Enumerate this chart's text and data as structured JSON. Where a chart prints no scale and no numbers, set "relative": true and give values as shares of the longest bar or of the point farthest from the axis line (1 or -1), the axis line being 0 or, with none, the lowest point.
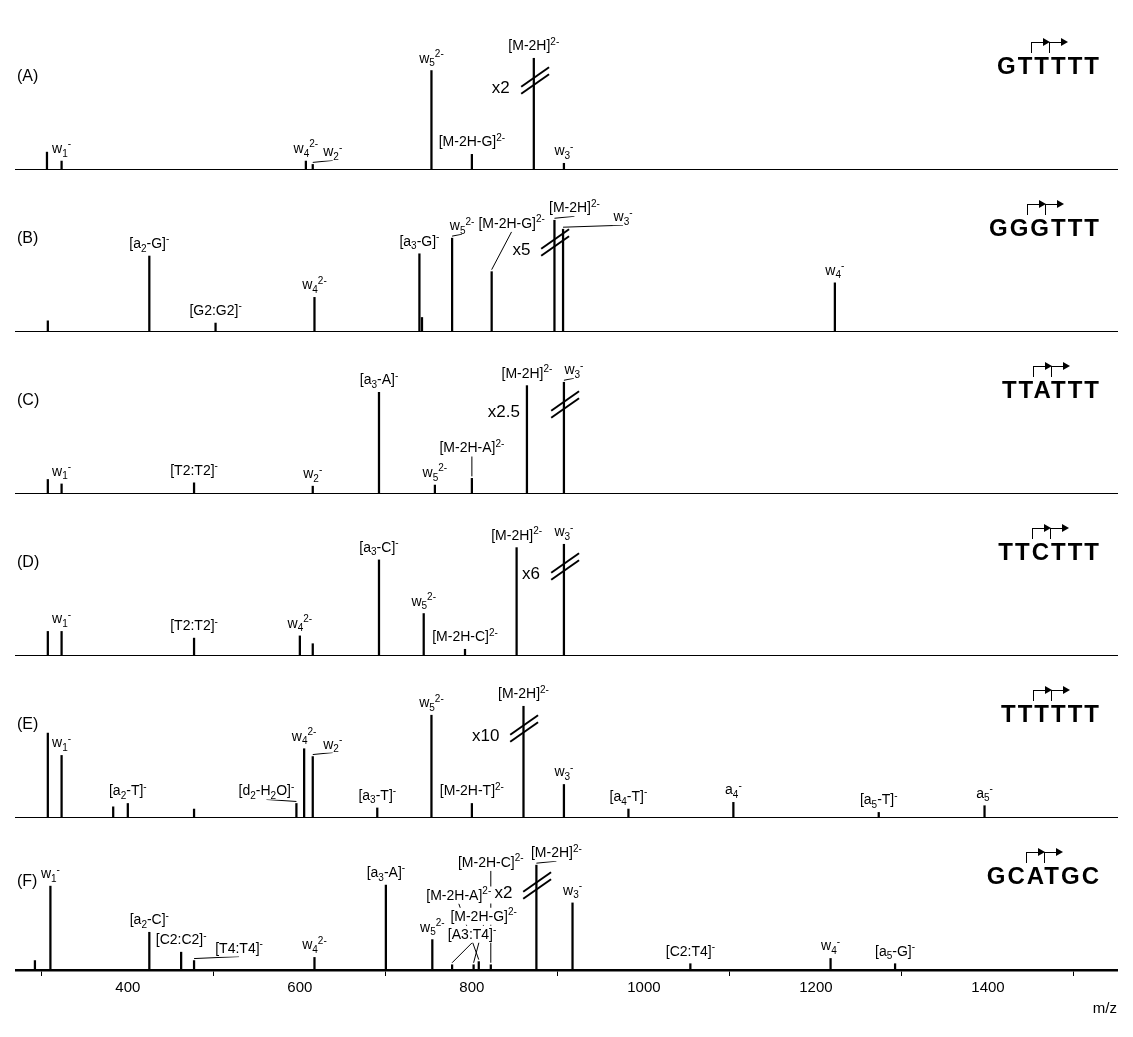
{
  "chart_data": [
    {
      "type": "bar",
      "relative": true,
      "color": "#000000",
      "xlim": [
        270,
        1550
      ],
      "tick_labels": false,
      "x": [
        306,
        323,
        607,
        615,
        753,
        800,
        872,
        907
      ],
      "values": [
        0.16,
        0.08,
        0.08,
        0.05,
        0.89,
        0.14,
        1,
        0.06
      ],
      "annotations": [
        "(A)",
        "GTTTTT",
        "x2",
        {
          "text": "w$_{1}$$^{-}$",
          "x": 323,
          "y": 0.08
        },
        {
          "text": "w$_{4}$$^{2-}$",
          "x": 607,
          "y": 0.08
        },
        {
          "text": "w$_{2}$$^{-}$",
          "x": 615,
          "y": 0.05
        },
        {
          "text": "w$_{5}$$^{2-}$",
          "x": 753,
          "y": 0.89
        },
        {
          "text": "[M-2H-G]$^{2-}$",
          "x": 800,
          "y": 0.14
        },
        {
          "text": "[M-2H]$^{2-}$",
          "x": 872,
          "y": 1
        },
        {
          "text": "w$_{3}$$^{-}$",
          "x": 907,
          "y": 0.06
        }
      ]
    },
    {
      "type": "bar",
      "relative": true,
      "color": "#000000",
      "xlim": [
        270,
        1550
      ],
      "tick_labels": false,
      "x": [
        307,
        425,
        502,
        617,
        739,
        742,
        777,
        823,
        896,
        906,
        1222
      ],
      "values": [
        0.1,
        0.68,
        0.08,
        0.31,
        0.7,
        0.13,
        0.84,
        0.54,
        1,
        0.92,
        0.44
      ],
      "annotations": [
        "(B)",
        "GGGTTT",
        "x5",
        {
          "text": "[a$_{2}$-G]$^{-}$",
          "x": 425,
          "y": 0.68
        },
        {
          "text": "[G2:G2]$^{-}$",
          "x": 502,
          "y": 0.08
        },
        {
          "text": "w$_{4}$$^{2-}$",
          "x": 617,
          "y": 0.31
        },
        {
          "text": "[a$_{3}$-G]$^{-}$",
          "x": 739,
          "y": 0.7
        },
        {
          "text": "w$_{5}$$^{2-}$",
          "x": 777,
          "y": 0.84
        },
        {
          "text": "[M-2H-G]$^{2-}$",
          "x": 823,
          "y": 0.54
        },
        {
          "text": "[M-2H]$^{2-}$",
          "x": 896,
          "y": 1
        },
        {
          "text": "w$_{3}$$^{-}$",
          "x": 906,
          "y": 0.92
        },
        {
          "text": "w$_{4}$$^{-}$",
          "x": 1222,
          "y": 0.44
        }
      ]
    },
    {
      "type": "bar",
      "relative": true,
      "color": "#000000",
      "xlim": [
        270,
        1550
      ],
      "tick_labels": false,
      "x": [
        307,
        323,
        477,
        615,
        692,
        757,
        800,
        864,
        907
      ],
      "values": [
        0.13,
        0.09,
        0.1,
        0.07,
        0.91,
        0.08,
        0.14,
        0.97,
        1
      ],
      "annotations": [
        "(C)",
        "TTATTT",
        "x2.5",
        {
          "text": "w$_{1}$$^{-}$",
          "x": 323,
          "y": 0.09
        },
        {
          "text": "[T2:T2]$^{-}$",
          "x": 477,
          "y": 0.1
        },
        {
          "text": "w$_{2}$$^{-}$",
          "x": 615,
          "y": 0.07
        },
        {
          "text": "[a$_{3}$-A]$^{-}$",
          "x": 692,
          "y": 0.91
        },
        {
          "text": "w$_{5}$$^{2-}$",
          "x": 757,
          "y": 0.08
        },
        {
          "text": "[M-2H-A]$^{2-}$",
          "x": 800,
          "y": 0.14
        },
        {
          "text": "[M-2H]$^{2-}$",
          "x": 864,
          "y": 0.97
        },
        {
          "text": "w$_{3}$$^{-}$",
          "x": 907,
          "y": 1
        }
      ]
    },
    {
      "type": "bar",
      "relative": true,
      "color": "#000000",
      "xlim": [
        270,
        1550
      ],
      "tick_labels": false,
      "x": [
        307,
        323,
        477,
        600,
        615,
        692,
        744,
        792,
        852,
        907
      ],
      "values": [
        0.22,
        0.22,
        0.16,
        0.18,
        0.11,
        0.86,
        0.38,
        0.06,
        0.97,
        1
      ],
      "annotations": [
        "(D)",
        "TTCTTT",
        "x6",
        {
          "text": "w$_{1}$$^{-}$",
          "x": 323,
          "y": 0.22
        },
        {
          "text": "[T2:T2]$^{-}$",
          "x": 477,
          "y": 0.16
        },
        {
          "text": "w$_{4}$$^{2-}$",
          "x": 600,
          "y": 0.18
        },
        {
          "text": "[a$_{3}$-C]$^{-}$",
          "x": 692,
          "y": 0.86
        },
        {
          "text": "w$_{5}$$^{2-}$",
          "x": 744,
          "y": 0.38
        },
        {
          "text": "[M-2H-C]$^{2-}$",
          "x": 792,
          "y": 0.06
        },
        {
          "text": "[M-2H]$^{2-}$",
          "x": 852,
          "y": 0.97
        },
        {
          "text": "w$_{3}$$^{-}$",
          "x": 907,
          "y": 1
        }
      ]
    },
    {
      "type": "bar",
      "relative": true,
      "color": "#000000",
      "xlim": [
        270,
        1550
      ],
      "tick_labels": false,
      "x": [
        307,
        323,
        383,
        400,
        477,
        596,
        605,
        615,
        690,
        753,
        800,
        860,
        907,
        982,
        1104,
        1273,
        1396
      ],
      "values": [
        0.76,
        0.56,
        0.1,
        0.13,
        0.08,
        0.13,
        0.62,
        0.55,
        0.09,
        0.92,
        0.13,
        1,
        0.3,
        0.08,
        0.14,
        0.05,
        0.11
      ],
      "annotations": [
        "(E)",
        "TTTTTT",
        "x10",
        {
          "text": "w$_{1}$$^{-}$",
          "x": 323,
          "y": 0.56
        },
        {
          "text": "[a$_{2}$-T]$^{-}$",
          "x": 400,
          "y": 0.13
        },
        {
          "text": "[d$_{2}$-H$_{2}$O]$^{-}$",
          "x": 596,
          "y": 0.13
        },
        {
          "text": "w$_{4}$$^{2-}$",
          "x": 605,
          "y": 0.62
        },
        {
          "text": "w$_{2}$$^{-}$",
          "x": 615,
          "y": 0.55
        },
        {
          "text": "[a$_{3}$-T]$^{-}$",
          "x": 690,
          "y": 0.09
        },
        {
          "text": "w$_{5}$$^{2-}$",
          "x": 753,
          "y": 0.92
        },
        {
          "text": "[M-2H-T]$^{2-}$",
          "x": 800,
          "y": 0.13
        },
        {
          "text": "[M-2H]$^{2-}$",
          "x": 860,
          "y": 1
        },
        {
          "text": "w$_{3}$$^{-}$",
          "x": 907,
          "y": 0.3
        },
        {
          "text": "[a$_{4}$-T]$^{-}$",
          "x": 982,
          "y": 0.08
        },
        {
          "text": "a$_{4}$$^{-}$",
          "x": 1104,
          "y": 0.14
        },
        {
          "text": "[a$_{5}$-T]$^{-}$",
          "x": 1273,
          "y": 0.05
        },
        {
          "text": "a$_{5}$$^{-}$",
          "x": 1396,
          "y": 0.11
        }
      ]
    },
    {
      "type": "bar",
      "relative": true,
      "color": "#000000",
      "xlim": [
        270,
        1550
      ],
      "xticks": [
        400,
        600,
        800,
        1000,
        1200,
        1400
      ],
      "xlabel": "m/z",
      "tick_labels": "x",
      "x": [
        292,
        310,
        425,
        462,
        477,
        617,
        700,
        754,
        777,
        802,
        808,
        822,
        875,
        917,
        1054,
        1217,
        1292
      ],
      "values": [
        0.09,
        0.8,
        0.36,
        0.17,
        0.09,
        0.12,
        0.81,
        0.29,
        0.05,
        0.05,
        0.08,
        0.05,
        1,
        0.64,
        0.06,
        0.11,
        0.06
      ],
      "annotations": [
        "(F)",
        "GCATGC",
        "x2",
        {
          "text": "w$_{1}$$^{-}$",
          "x": 310,
          "y": 0.8
        },
        {
          "text": "[a$_{2}$-C]$^{-}$",
          "x": 425,
          "y": 0.36
        },
        {
          "text": "[C2:C2]$^{-}$",
          "x": 462,
          "y": 0.17
        },
        {
          "text": "[T4:T4]$^{-}$",
          "x": 477,
          "y": 0.09
        },
        {
          "text": "w$_{4}$$^{2-}$",
          "x": 617,
          "y": 0.12
        },
        {
          "text": "[a$_{3}$-A]$^{-}$",
          "x": 700,
          "y": 0.81
        },
        {
          "text": "w$_{5}$$^{2-}$",
          "x": 754,
          "y": 0.29
        },
        {
          "text": "[A3:T4]$^{-}$",
          "x": 777,
          "y": 0.05
        },
        {
          "text": "[M-2H-G]$^{2-}$",
          "x": 802,
          "y": 0.05
        },
        {
          "text": "[M-2H-A]$^{2-}$",
          "x": 808,
          "y": 0.08
        },
        {
          "text": "[M-2H-C]$^{2-}$",
          "x": 822,
          "y": 0.05
        },
        {
          "text": "[M-2H]$^{2-}$",
          "x": 875,
          "y": 1
        },
        {
          "text": "w$_{3}$$^{-}$",
          "x": 917,
          "y": 0.64
        },
        {
          "text": "[C2:T4]$^{-}$",
          "x": 1054,
          "y": 0.06
        },
        {
          "text": "w$_{4}$$^{-}$",
          "x": 1217,
          "y": 0.11
        },
        {
          "text": "[a$_{5}$-G]$^{-}$",
          "x": 1292,
          "y": 0.06
        }
      ]
    }
  ]
}
